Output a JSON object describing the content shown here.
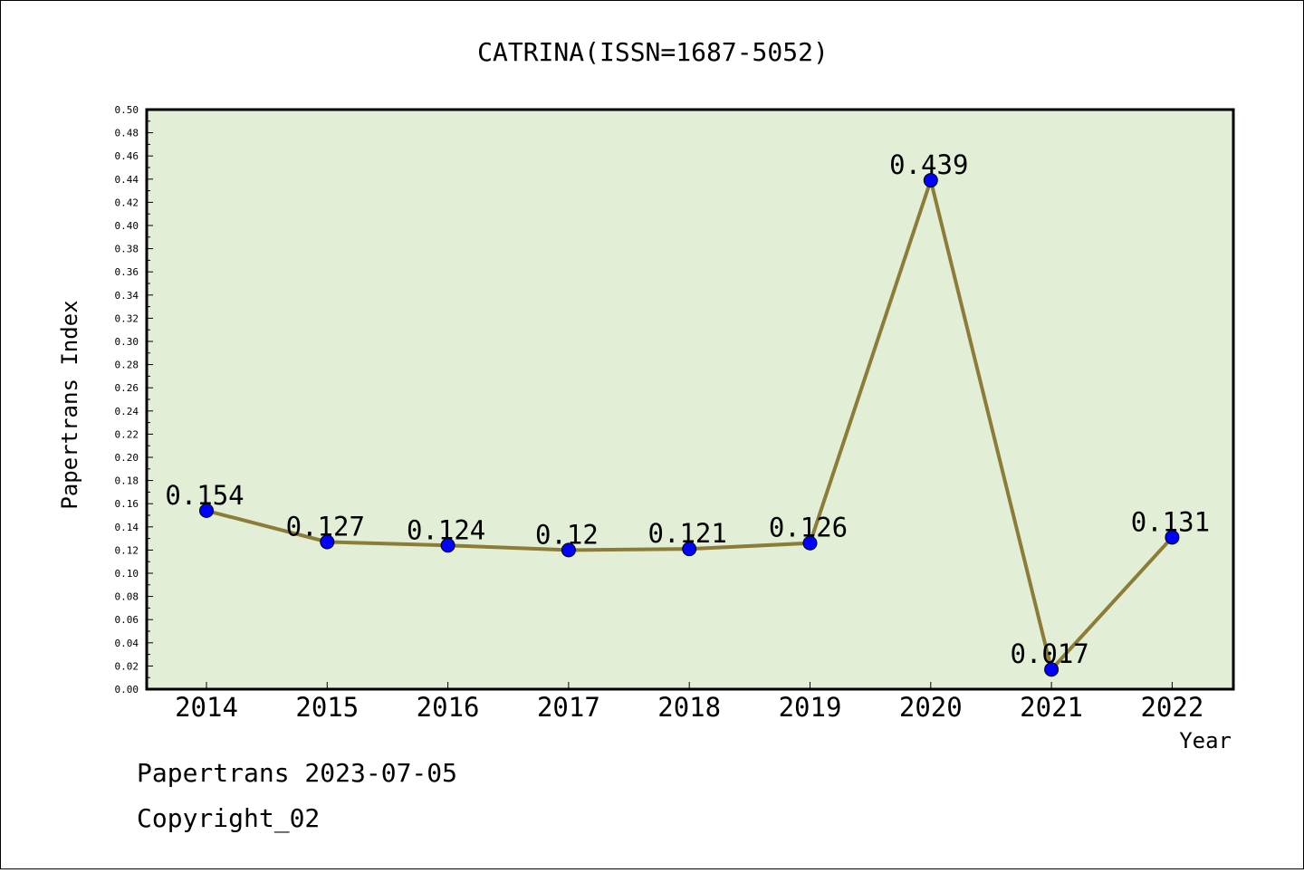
{
  "chart_data": {
    "type": "line",
    "title": "CATRINA(ISSN=1687-5052)",
    "xlabel": "Year",
    "ylabel": "Papertrans Index",
    "categories": [
      "2014",
      "2015",
      "2016",
      "2017",
      "2018",
      "2019",
      "2020",
      "2021",
      "2022"
    ],
    "series": [
      {
        "values": [
          0.154,
          0.127,
          0.124,
          0.12,
          0.121,
          0.126,
          0.439,
          0.017,
          0.131
        ],
        "labels": [
          "0.154",
          "0.127",
          "0.124",
          "0.12",
          "0.121",
          "0.126",
          "0.439",
          "0.017",
          "0.131"
        ]
      }
    ],
    "ylim": [
      0,
      0.5
    ],
    "y_ticks": [
      "0.00",
      "0.02",
      "0.04",
      "0.06",
      "0.08",
      "0.10",
      "0.12",
      "0.14",
      "0.16",
      "0.18",
      "0.20",
      "0.22",
      "0.24",
      "0.26",
      "0.28",
      "0.30",
      "0.32",
      "0.34",
      "0.36",
      "0.38",
      "0.40",
      "0.42",
      "0.44",
      "0.46",
      "0.48",
      "0.50"
    ],
    "grid": false,
    "plot_background": "#e2efd6",
    "line_color": "#8b7d37",
    "marker_color": "#0000ff"
  },
  "footer": {
    "line1": "Papertrans 2023-07-05",
    "line2": "Copyright_02"
  }
}
